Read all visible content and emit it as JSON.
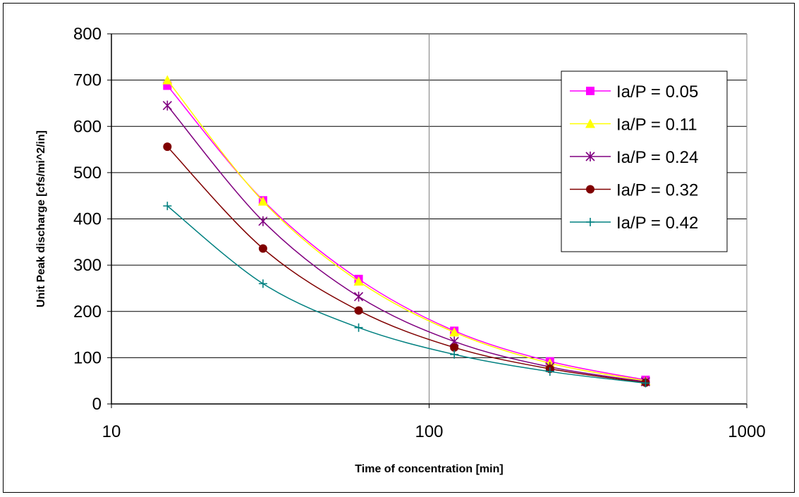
{
  "chart_data": {
    "type": "line",
    "xscale": "log",
    "xlim": [
      10,
      1000
    ],
    "ylim": [
      0,
      800
    ],
    "xlabel": "Time of concentration [min]",
    "ylabel": "Unit Peak discharge [cfs/mi^2/in]",
    "grid": true,
    "legend_position": "top-right",
    "x_ticks": [
      10,
      100,
      1000
    ],
    "x_tick_labels": [
      "10",
      "100",
      "1000"
    ],
    "y_ticks": [
      0,
      100,
      200,
      300,
      400,
      500,
      600,
      700,
      800
    ],
    "y_tick_labels": [
      "0",
      "100",
      "200",
      "300",
      "400",
      "500",
      "600",
      "700",
      "800"
    ],
    "x": [
      15,
      30,
      60,
      120,
      240,
      480
    ],
    "series": [
      {
        "name": "Ia/P = 0.05",
        "color": "#FF00FF",
        "marker": "square",
        "values": [
          688,
          440,
          270,
          158,
          92,
          52
        ]
      },
      {
        "name": "Ia/P = 0.11",
        "color": "#FFFF00",
        "marker": "triangle",
        "values": [
          700,
          438,
          265,
          155,
          88,
          50
        ]
      },
      {
        "name": "Ia/P = 0.24",
        "color": "#800080",
        "marker": "star",
        "values": [
          645,
          395,
          232,
          135,
          80,
          48
        ]
      },
      {
        "name": "Ia/P = 0.32",
        "color": "#800000",
        "marker": "circle",
        "values": [
          556,
          336,
          202,
          122,
          76,
          46
        ]
      },
      {
        "name": "Ia/P = 0.42",
        "color": "#008080",
        "marker": "plus",
        "values": [
          428,
          260,
          165,
          107,
          70,
          45
        ]
      }
    ]
  }
}
